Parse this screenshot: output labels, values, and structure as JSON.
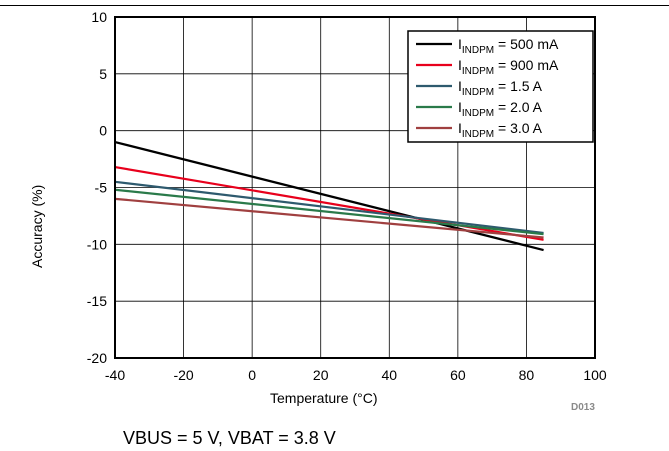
{
  "chart_data": {
    "type": "line",
    "xlabel": "Temperature (°C)",
    "ylabel": "Accuracy (%)",
    "xlim": [
      -40,
      100
    ],
    "ylim": [
      -20,
      10
    ],
    "xticks": [
      -40,
      -20,
      0,
      20,
      40,
      60,
      80,
      100
    ],
    "yticks": [
      -20,
      -15,
      -10,
      -5,
      0,
      5,
      10
    ],
    "grid": true,
    "legend_position": "top-right",
    "series": [
      {
        "name_main": "I",
        "name_sub": "INDPM",
        "name_rest": " = 500 mA",
        "color": "#000000",
        "x": [
          -40,
          85
        ],
        "y": [
          -1.0,
          -10.5
        ]
      },
      {
        "name_main": "I",
        "name_sub": "INDPM",
        "name_rest": " = 900 mA",
        "color": "#e8001c",
        "x": [
          -40,
          85
        ],
        "y": [
          -3.2,
          -9.6
        ]
      },
      {
        "name_main": "I",
        "name_sub": "INDPM",
        "name_rest": " = 1.5 A",
        "color": "#2e5a6e",
        "x": [
          -40,
          85
        ],
        "y": [
          -4.5,
          -9.0
        ]
      },
      {
        "name_main": "I",
        "name_sub": "INDPM",
        "name_rest": " = 2.0 A",
        "color": "#2a7a4a",
        "x": [
          -40,
          85
        ],
        "y": [
          -5.2,
          -9.1
        ]
      },
      {
        "name_main": "I",
        "name_sub": "INDPM",
        "name_rest": " = 3.0 A",
        "color": "#a04040",
        "x": [
          -40,
          85
        ],
        "y": [
          -6.0,
          -9.4
        ]
      }
    ]
  },
  "caption": "VBUS = 5 V, VBAT = 3.8 V",
  "figure_id": "D013"
}
